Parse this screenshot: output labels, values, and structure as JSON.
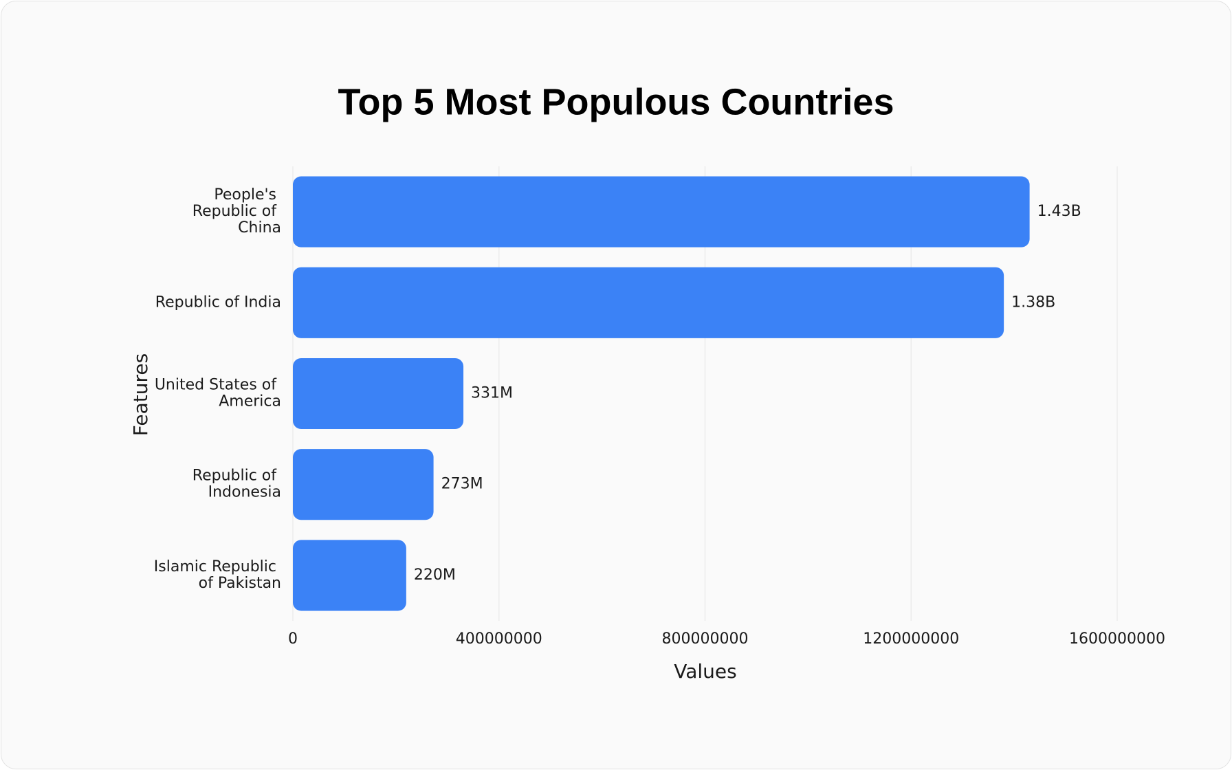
{
  "chart_data": {
    "type": "hbar",
    "title": "Top 5 Most Populous Countries",
    "x_label": "Values",
    "y_label": "Features",
    "categories": [
      "People's Republic of China",
      "Republic of India",
      "United States of America",
      "Republic of Indonesia",
      "Islamic Republic of Pakistan"
    ],
    "values": [
      1430000000,
      1380000000,
      331000000,
      273000000,
      220000000
    ],
    "value_labels": [
      "1.43B",
      "1.38B",
      "331M",
      "273M",
      "220M"
    ],
    "color": "#3b82f6",
    "xlim": [
      0,
      1600000000
    ],
    "xticks": [
      0,
      400000000,
      800000000,
      1200000000,
      1600000000
    ],
    "grid": true
  }
}
